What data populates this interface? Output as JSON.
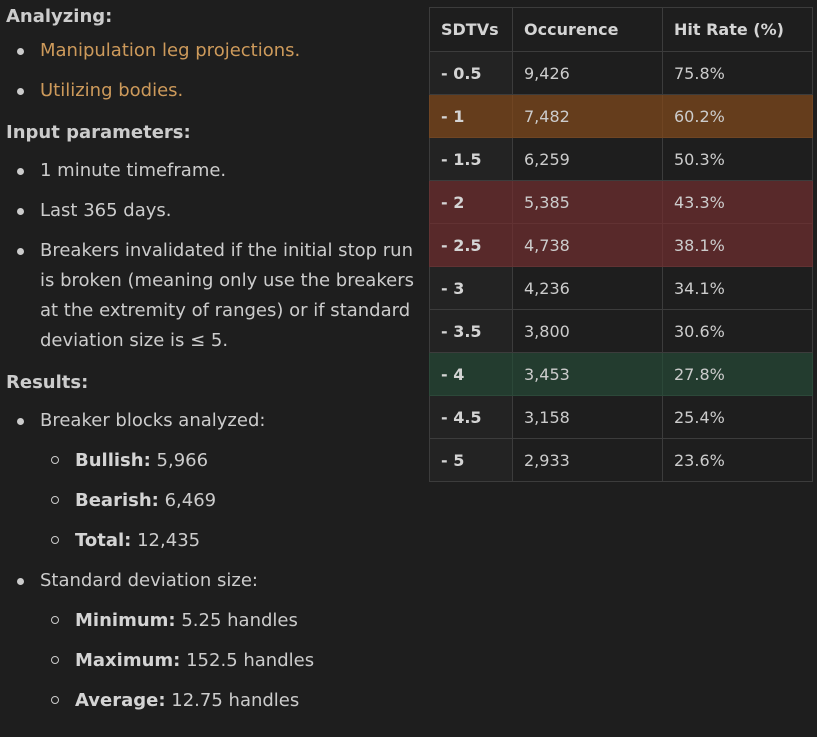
{
  "analyzing": {
    "heading": "Analyzing:",
    "items": [
      "Manipulation leg projections.",
      "Utilizing bodies."
    ]
  },
  "input": {
    "heading": "Input parameters:",
    "items": [
      "1 minute timeframe.",
      "Last 365 days.",
      "Breakers invalidated if the initial stop run is broken (meaning only use the breakers at the extremity of ranges) or if standard deviation size is ≤ 5."
    ]
  },
  "results": {
    "heading": "Results:",
    "breakers": {
      "label": "Breaker blocks analyzed:",
      "items": [
        {
          "key": "Bullish:",
          "value": "5,966"
        },
        {
          "key": "Bearish:",
          "value": "6,469"
        },
        {
          "key": "Total:",
          "value": "12,435"
        }
      ]
    },
    "deviation": {
      "label": "Standard deviation size:",
      "items": [
        {
          "key": "Minimum:",
          "value": "5.25 handles"
        },
        {
          "key": "Maximum:",
          "value": "152.5 handles"
        },
        {
          "key": "Average:",
          "value": "12.75 handles"
        }
      ]
    }
  },
  "table": {
    "headers": [
      "SDTVs",
      "Occurence",
      "Hit Rate (%)"
    ],
    "rows": [
      {
        "sdtv": "- 0.5",
        "occurrence": "9,426",
        "hit_rate": "75.8%",
        "highlight": "none"
      },
      {
        "sdtv": "- 1",
        "occurrence": "7,482",
        "hit_rate": "60.2%",
        "highlight": "orange"
      },
      {
        "sdtv": "- 1.5",
        "occurrence": "6,259",
        "hit_rate": "50.3%",
        "highlight": "none"
      },
      {
        "sdtv": "- 2",
        "occurrence": "5,385",
        "hit_rate": "43.3%",
        "highlight": "red"
      },
      {
        "sdtv": "- 2.5",
        "occurrence": "4,738",
        "hit_rate": "38.1%",
        "highlight": "red"
      },
      {
        "sdtv": "- 3",
        "occurrence": "4,236",
        "hit_rate": "34.1%",
        "highlight": "none"
      },
      {
        "sdtv": "- 3.5",
        "occurrence": "3,800",
        "hit_rate": "30.6%",
        "highlight": "none"
      },
      {
        "sdtv": "- 4",
        "occurrence": "3,453",
        "hit_rate": "27.8%",
        "highlight": "green"
      },
      {
        "sdtv": "- 4.5",
        "occurrence": "3,158",
        "hit_rate": "25.4%",
        "highlight": "none"
      },
      {
        "sdtv": "- 5",
        "occurrence": "2,933",
        "hit_rate": "23.6%",
        "highlight": "none"
      }
    ]
  },
  "colors": {
    "background": "#1e1e1e",
    "text": "#cccccc",
    "link_text": "#cd9a5b",
    "row_orange": "#653d1c",
    "row_red": "#58292a",
    "row_green": "#233c2f"
  }
}
